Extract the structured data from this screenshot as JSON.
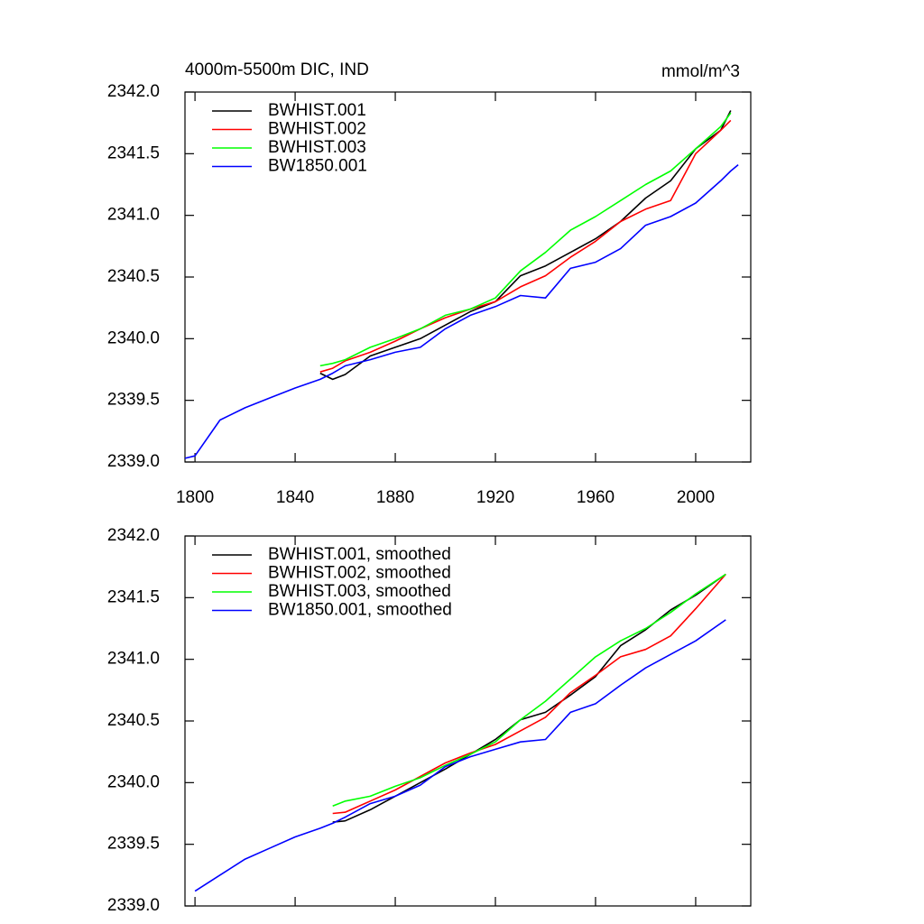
{
  "chart_data": [
    {
      "type": "line",
      "title": "4000m-5500m DIC, IND",
      "units": "mmol/m^3",
      "x": [
        1796,
        1800,
        1810,
        1820,
        1830,
        1840,
        1850,
        1855,
        1860,
        1870,
        1880,
        1890,
        1900,
        1910,
        1920,
        1930,
        1940,
        1950,
        1960,
        1970,
        1980,
        1990,
        2000,
        2010,
        2014,
        2017
      ],
      "series": [
        {
          "name": "BWHIST.001",
          "color": "#000000",
          "values": [
            null,
            null,
            null,
            null,
            null,
            null,
            2339.72,
            2339.67,
            2339.71,
            2339.86,
            2339.93,
            2340.0,
            2340.11,
            2340.22,
            2340.3,
            2340.51,
            2340.59,
            2340.7,
            2340.81,
            2340.95,
            2341.14,
            2341.28,
            2341.54,
            2341.69,
            2341.85,
            null
          ]
        },
        {
          "name": "BWHIST.002",
          "color": "#ff0000",
          "values": [
            null,
            null,
            null,
            null,
            null,
            null,
            2339.73,
            2339.76,
            2339.82,
            2339.89,
            2339.98,
            2340.08,
            2340.17,
            2340.24,
            2340.3,
            2340.42,
            2340.51,
            2340.66,
            2340.79,
            2340.95,
            2341.05,
            2341.12,
            2341.5,
            2341.69,
            2341.77,
            null
          ]
        },
        {
          "name": "BWHIST.003",
          "color": "#00ff00",
          "values": [
            null,
            null,
            null,
            null,
            null,
            null,
            2339.78,
            2339.8,
            2339.83,
            2339.93,
            2340.0,
            2340.08,
            2340.19,
            2340.24,
            2340.33,
            2340.55,
            2340.7,
            2340.88,
            2340.99,
            2341.12,
            2341.25,
            2341.36,
            2341.54,
            2341.72,
            2341.83,
            null
          ]
        },
        {
          "name": "BW1850.001",
          "color": "#0000ff",
          "values": [
            2339.03,
            2339.05,
            2339.34,
            2339.44,
            2339.52,
            2339.6,
            2339.67,
            2339.72,
            2339.78,
            2339.83,
            2339.89,
            2339.93,
            2340.08,
            2340.19,
            2340.26,
            2340.35,
            2340.33,
            2340.57,
            2340.62,
            2340.73,
            2340.92,
            2340.99,
            2341.1,
            2341.28,
            2341.36,
            2341.41
          ]
        }
      ],
      "xlim": [
        1796,
        2022
      ],
      "ylim": [
        2339,
        2342
      ],
      "xticks": [
        1800,
        1840,
        1880,
        1920,
        1960,
        2000
      ],
      "yticks": [
        {
          "value": 2339,
          "label": "2339.0"
        },
        {
          "value": 2339.5,
          "label": "2339.5"
        },
        {
          "value": 2340,
          "label": "2340.0"
        },
        {
          "value": 2340.5,
          "label": "2340.5"
        },
        {
          "value": 2341,
          "label": "2341.0"
        },
        {
          "value": 2341.5,
          "label": "2341.5"
        },
        {
          "value": 2342,
          "label": "2342.0"
        }
      ],
      "legend": "upper-left",
      "xtick_labels": true
    },
    {
      "type": "line",
      "x": [
        1800,
        1810,
        1820,
        1830,
        1840,
        1850,
        1855,
        1860,
        1870,
        1880,
        1890,
        1900,
        1910,
        1920,
        1930,
        1940,
        1950,
        1960,
        1970,
        1980,
        1990,
        2000,
        2012
      ],
      "series": [
        {
          "name": "BWHIST.001, smoothed",
          "color": "#000000",
          "values": [
            null,
            null,
            null,
            null,
            null,
            null,
            2339.68,
            2339.69,
            2339.78,
            2339.89,
            2340.0,
            2340.11,
            2340.23,
            2340.35,
            2340.51,
            2340.57,
            2340.71,
            2340.86,
            2341.11,
            2341.24,
            2341.4,
            2341.52,
            2341.69
          ]
        },
        {
          "name": "BWHIST.002, smoothed",
          "color": "#ff0000",
          "values": [
            null,
            null,
            null,
            null,
            null,
            null,
            2339.75,
            2339.76,
            2339.85,
            2339.94,
            2340.05,
            2340.16,
            2340.24,
            2340.31,
            2340.42,
            2340.53,
            2340.73,
            2340.87,
            2341.02,
            2341.08,
            2341.19,
            2341.41,
            2341.69
          ]
        },
        {
          "name": "BWHIST.003, smoothed",
          "color": "#00ff00",
          "values": [
            null,
            null,
            null,
            null,
            null,
            null,
            2339.81,
            2339.85,
            2339.89,
            2339.97,
            2340.04,
            2340.14,
            2340.23,
            2340.33,
            2340.51,
            2340.66,
            2340.84,
            2341.02,
            2341.15,
            2341.25,
            2341.38,
            2341.53,
            2341.69
          ]
        },
        {
          "name": "BW1850.001, smoothed",
          "color": "#0000ff",
          "values": [
            2339.12,
            2339.25,
            2339.38,
            2339.47,
            2339.56,
            2339.63,
            2339.67,
            2339.72,
            2339.83,
            2339.89,
            2339.98,
            2340.13,
            2340.21,
            2340.27,
            2340.33,
            2340.35,
            2340.57,
            2340.64,
            2340.79,
            2340.93,
            2341.04,
            2341.15,
            2341.32
          ]
        }
      ],
      "xlim": [
        1796,
        2022
      ],
      "ylim": [
        2339,
        2342
      ],
      "xticks": [
        1800,
        1840,
        1880,
        1920,
        1960,
        2000
      ],
      "yticks": [
        {
          "value": 2339,
          "label": "2339.0"
        },
        {
          "value": 2339.5,
          "label": "2339.5"
        },
        {
          "value": 2340,
          "label": "2340.0"
        },
        {
          "value": 2340.5,
          "label": "2340.5"
        },
        {
          "value": 2341,
          "label": "2341.0"
        },
        {
          "value": 2341.5,
          "label": "2341.5"
        },
        {
          "value": 2342,
          "label": "2342.0"
        }
      ],
      "legend": "upper-left",
      "xtick_labels": false
    }
  ]
}
